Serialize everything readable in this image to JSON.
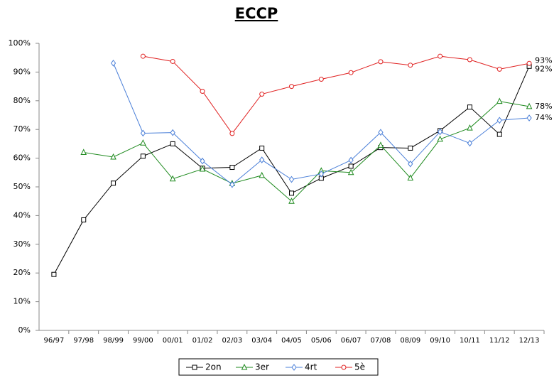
{
  "chart_data": {
    "type": "line",
    "title": "ECCP",
    "categories": [
      "96/97",
      "97/98",
      "98/99",
      "99/00",
      "00/01",
      "01/02",
      "02/03",
      "03/04",
      "04/05",
      "05/06",
      "06/07",
      "07/08",
      "08/09",
      "09/10",
      "10/11",
      "11/12",
      "12/13"
    ],
    "series": [
      {
        "name": "2on",
        "color": "#000000",
        "marker": "square",
        "values": [
          19.5,
          38.5,
          51.3,
          60.7,
          65,
          56.5,
          56.8,
          63.5,
          47.8,
          53,
          57.2,
          63.7,
          63.5,
          69.6,
          77.8,
          68.3,
          92
        ],
        "value_labels": [
          null,
          null,
          null,
          null,
          null,
          null,
          null,
          null,
          null,
          null,
          null,
          null,
          null,
          null,
          null,
          null,
          "92%"
        ]
      },
      {
        "name": "3er",
        "color": "#1e8a1e",
        "marker": "triangle",
        "values": [
          null,
          62,
          60.4,
          65.3,
          52.8,
          56.2,
          51.2,
          54,
          45,
          55.6,
          55,
          64.5,
          53.1,
          66.6,
          70.5,
          79.8,
          78
        ],
        "value_labels": [
          null,
          null,
          null,
          null,
          null,
          null,
          null,
          null,
          null,
          null,
          null,
          null,
          null,
          null,
          null,
          null,
          "78%"
        ]
      },
      {
        "name": "4rt",
        "color": "#4a7fd8",
        "marker": "diamond",
        "values": [
          null,
          null,
          93.1,
          68.7,
          68.9,
          59,
          50.8,
          59.4,
          52.6,
          54.5,
          59.3,
          69,
          58,
          69.2,
          65.2,
          73.2,
          74
        ],
        "value_labels": [
          null,
          null,
          null,
          null,
          null,
          null,
          null,
          null,
          null,
          null,
          null,
          null,
          null,
          null,
          null,
          null,
          "74%"
        ]
      },
      {
        "name": "5è",
        "color": "#e02020",
        "marker": "circle",
        "values": [
          null,
          null,
          null,
          95.5,
          93.7,
          83.3,
          68.6,
          82.3,
          85,
          87.5,
          89.8,
          93.6,
          92.4,
          95.5,
          94.3,
          91,
          93
        ],
        "value_labels": [
          null,
          null,
          null,
          null,
          null,
          null,
          null,
          null,
          null,
          null,
          null,
          null,
          null,
          null,
          null,
          null,
          "93%"
        ]
      }
    ],
    "ylim": [
      0,
      100
    ],
    "yticks": [
      {
        "value": 0,
        "label": "0%"
      },
      {
        "value": 10,
        "label": "10%"
      },
      {
        "value": 20,
        "label": "20%"
      },
      {
        "value": 30,
        "label": "30%"
      },
      {
        "value": 40,
        "label": "40%"
      },
      {
        "value": 50,
        "label": "50%"
      },
      {
        "value": 60,
        "label": "60%"
      },
      {
        "value": 70,
        "label": "70%"
      },
      {
        "value": 80,
        "label": "80%"
      },
      {
        "value": 90,
        "label": "90%"
      },
      {
        "value": 100,
        "label": "100%"
      }
    ],
    "grid": false,
    "legend": "bottom"
  }
}
